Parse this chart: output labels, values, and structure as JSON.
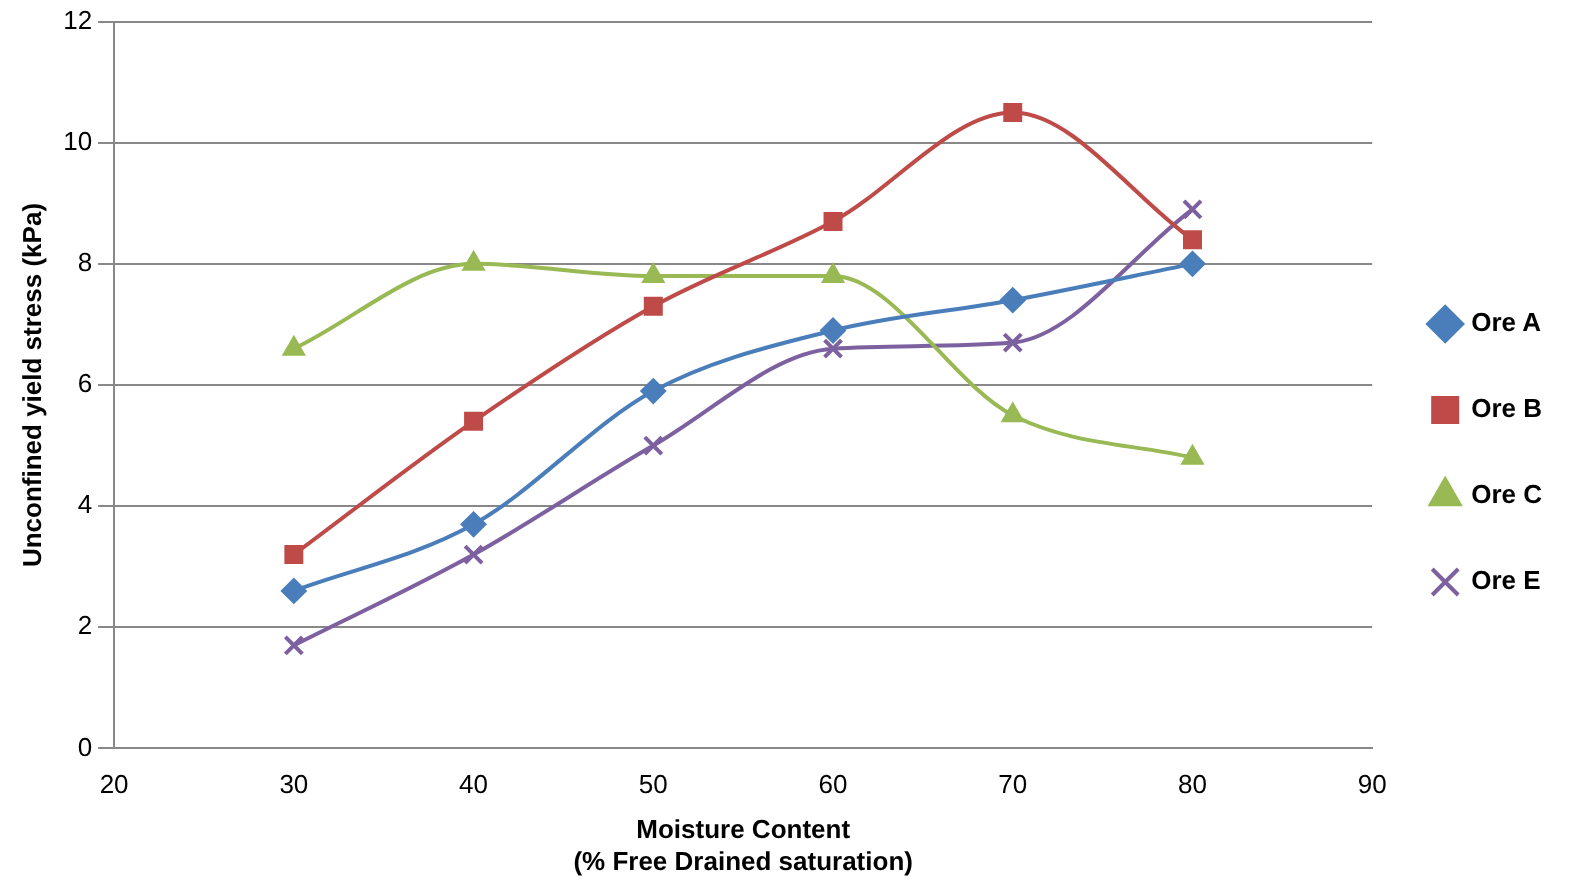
{
  "chart_data": {
    "type": "line",
    "xlabel": "Moisture Content\n(% Free Drained saturation)",
    "ylabel": "Unconfined yield stress (kPa)",
    "xlim": [
      20,
      90
    ],
    "xticks": [
      20,
      30,
      40,
      50,
      60,
      70,
      80,
      90
    ],
    "ylim": [
      0,
      12
    ],
    "yticks": [
      0,
      2,
      4,
      6,
      8,
      10,
      12
    ],
    "grid": "y",
    "legend": "right",
    "x": [
      30,
      40,
      50,
      60,
      70,
      80
    ],
    "series": [
      {
        "name": "Ore A",
        "color": "#4a7ebb",
        "marker": "diamond",
        "values": [
          2.6,
          3.7,
          5.9,
          6.9,
          7.4,
          8.0
        ]
      },
      {
        "name": "Ore B",
        "color": "#be4b48",
        "marker": "square",
        "values": [
          3.2,
          5.4,
          7.3,
          8.7,
          10.5,
          8.4
        ]
      },
      {
        "name": "Ore C",
        "color": "#98b954",
        "marker": "triangle",
        "values": [
          6.6,
          8.0,
          7.8,
          7.8,
          5.5,
          4.8
        ]
      },
      {
        "name": "Ore E",
        "color": "#7d60a0",
        "marker": "cross",
        "values": [
          1.7,
          3.2,
          5.0,
          6.6,
          6.7,
          8.9
        ]
      }
    ]
  }
}
